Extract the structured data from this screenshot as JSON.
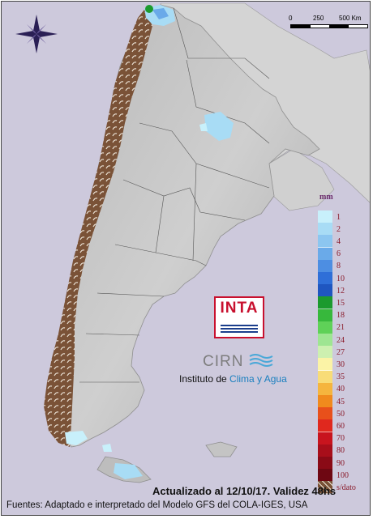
{
  "map": {
    "title": "",
    "variable": "precipitation",
    "forecast_window": "48hs",
    "nodata_color": "#7a5237",
    "land_color": "#c4c4c4",
    "ocean_color": "#cdc9dc",
    "icons": [
      "compass-rose-icon",
      "scale-bar"
    ]
  },
  "scale_bar": {
    "labels": [
      "0",
      "250",
      "500 Km"
    ]
  },
  "legend": {
    "unit": "mm",
    "items": [
      {
        "label": "1",
        "color": "#c8f0fb"
      },
      {
        "label": "2",
        "color": "#a8dcf5"
      },
      {
        "label": "4",
        "color": "#8cc6f0"
      },
      {
        "label": "6",
        "color": "#6aaae9"
      },
      {
        "label": "8",
        "color": "#4d8ee2"
      },
      {
        "label": "10",
        "color": "#2f6fd8"
      },
      {
        "label": "12",
        "color": "#1f56c0"
      },
      {
        "label": "15",
        "color": "#1c9a2e"
      },
      {
        "label": "18",
        "color": "#37b83c"
      },
      {
        "label": "21",
        "color": "#5fd158"
      },
      {
        "label": "24",
        "color": "#9ee592"
      },
      {
        "label": "27",
        "color": "#cdf0b0"
      },
      {
        "label": "30",
        "color": "#fbf3a6"
      },
      {
        "label": "35",
        "color": "#f8dc77"
      },
      {
        "label": "40",
        "color": "#f5b53e"
      },
      {
        "label": "45",
        "color": "#f08a1d"
      },
      {
        "label": "50",
        "color": "#e8501b"
      },
      {
        "label": "60",
        "color": "#e0281e"
      },
      {
        "label": "70",
        "color": "#c8141e"
      },
      {
        "label": "80",
        "color": "#a80e1a"
      },
      {
        "label": "90",
        "color": "#8a0a16"
      },
      {
        "label": "100",
        "color": "#6e0712"
      },
      {
        "label": "s/dato",
        "color": "#7a5237"
      }
    ]
  },
  "logos": {
    "inta": "INTA",
    "cirn": "CIRN",
    "instituto_prefix": "Instituto de ",
    "instituto_highlight": "Clima y Agua"
  },
  "footer": {
    "updated": "Actualizado al 12/10/17. Validez 48hs",
    "source": "Fuentes: Adaptado e interpretado del Modelo GFS del COLA-IGES, USA"
  }
}
